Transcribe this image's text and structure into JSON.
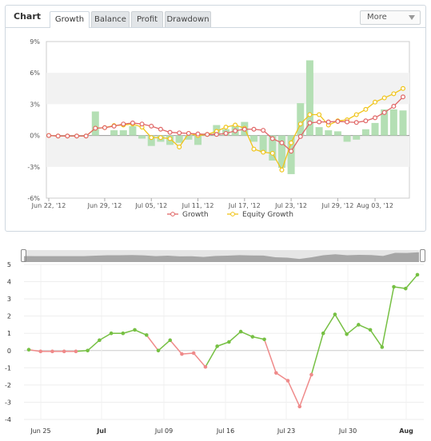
{
  "header": {
    "chart_label": "Chart",
    "tabs": [
      {
        "label": "Growth",
        "active": true
      },
      {
        "label": "Balance",
        "active": false
      },
      {
        "label": "Profit",
        "active": false
      },
      {
        "label": "Drawdown",
        "active": false
      }
    ],
    "more_label": "More"
  },
  "colors": {
    "growth": "#e06666",
    "equity": "#f0c419",
    "bar": "#b4dfb4",
    "line_up": "#76c043",
    "line_down": "#ef8a8a"
  },
  "chart_data": [
    {
      "type": "line",
      "title": "",
      "x_tick_labels": [
        "Jun 22, '12",
        "Jun 29, '12",
        "Jul 05, '12",
        "Jul 11, '12",
        "Jul 17, '12",
        "Jul 23, '12",
        "Jul 29, '12",
        "Aug 03, '12"
      ],
      "y_tick_labels": [
        "9%",
        "6%",
        "3%",
        "0%",
        "-3%",
        "-6%"
      ],
      "ylim": [
        -6,
        9
      ],
      "legend": [
        "Growth",
        "Equity Growth"
      ],
      "legend_position": "bottom",
      "series": [
        {
          "name": "Growth",
          "values": [
            0.0,
            -0.05,
            -0.05,
            -0.05,
            -0.05,
            0.7,
            0.75,
            0.9,
            1.1,
            1.2,
            1.1,
            0.9,
            0.6,
            0.3,
            0.25,
            0.2,
            0.15,
            0.1,
            0.1,
            0.2,
            0.45,
            0.6,
            0.6,
            0.5,
            -0.3,
            -0.7,
            -1.5,
            -0.1,
            1.2,
            1.3,
            1.3,
            1.35,
            1.3,
            1.25,
            1.4,
            1.7,
            2.2,
            2.8,
            3.7
          ]
        },
        {
          "name": "Equity Growth",
          "values": [
            0.0,
            -0.05,
            -0.05,
            -0.05,
            -0.05,
            0.7,
            0.75,
            0.95,
            1.0,
            1.1,
            0.8,
            -0.2,
            -0.2,
            -0.3,
            -1.1,
            0.2,
            0.0,
            0.1,
            0.4,
            0.8,
            1.0,
            0.7,
            -1.3,
            -1.6,
            -1.7,
            -3.3,
            -0.7,
            1.1,
            2.0,
            2.0,
            1.0,
            1.4,
            1.5,
            2.0,
            2.5,
            3.2,
            3.6,
            4.0,
            4.5
          ]
        },
        {
          "name": "",
          "kind": "bar",
          "values": [
            0.0,
            0.0,
            0.0,
            0.0,
            0.0,
            2.3,
            0.0,
            0.5,
            0.5,
            0.9,
            -0.3,
            -1.0,
            -0.6,
            -0.9,
            -0.7,
            -0.4,
            -0.9,
            0.2,
            1.0,
            0.6,
            0.9,
            1.3,
            -0.6,
            -1.6,
            -2.4,
            -3.1,
            -3.7,
            3.1,
            7.2,
            0.8,
            0.5,
            0.4,
            -0.6,
            -0.4,
            0.6,
            1.2,
            2.5,
            2.5,
            2.4
          ]
        }
      ]
    },
    {
      "type": "line",
      "title": "",
      "x_tick_labels": [
        "Jun 25",
        "Jul",
        "Jul 09",
        "Jul 16",
        "Jul 23",
        "Jul 30",
        "Aug"
      ],
      "y_tick_labels": [
        "5",
        "4",
        "3",
        "2",
        "1",
        "0",
        "-1",
        "-2",
        "-3",
        "-4"
      ],
      "ylim": [
        -4,
        5
      ],
      "series": [
        {
          "name": "",
          "values": [
            0.05,
            -0.05,
            -0.05,
            -0.05,
            -0.05,
            0.0,
            0.6,
            1.0,
            1.0,
            1.2,
            0.9,
            0.0,
            0.6,
            -0.2,
            -0.15,
            -0.95,
            0.25,
            0.5,
            1.1,
            0.8,
            0.65,
            -1.3,
            -1.75,
            -3.25,
            -1.4,
            1.0,
            2.1,
            0.95,
            1.5,
            1.2,
            0.2,
            3.7,
            3.6,
            4.4
          ]
        }
      ]
    }
  ]
}
